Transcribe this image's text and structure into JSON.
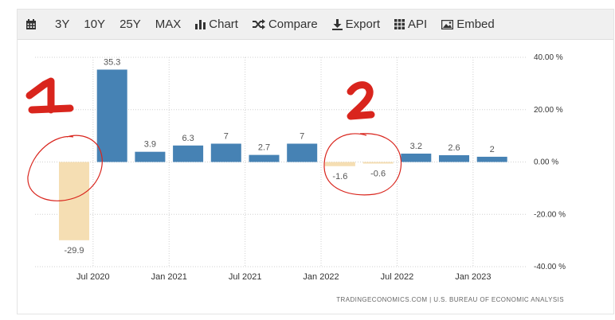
{
  "toolbar": {
    "calendar_icon": "calendar-icon",
    "items": [
      {
        "label": "3Y"
      },
      {
        "label": "10Y"
      },
      {
        "label": "25Y"
      },
      {
        "label": "MAX"
      },
      {
        "label": "Chart",
        "icon": "bar-chart-icon"
      },
      {
        "label": "Compare",
        "icon": "shuffle-icon"
      },
      {
        "label": "Export",
        "icon": "download-icon"
      },
      {
        "label": "API",
        "icon": "grid-icon"
      },
      {
        "label": "Embed",
        "icon": "image-icon"
      }
    ]
  },
  "colors": {
    "positive": "#4682b4",
    "negative": "#f5deb3",
    "annotation": "#d9251d"
  },
  "annotations": {
    "one": "1",
    "two": "2"
  },
  "source": "TRADINGECONOMICS.COM | U.S. BUREAU OF ECONOMIC ANALYSIS",
  "chart_data": {
    "type": "bar",
    "categories": [
      "2020-Q2",
      "2020-Q3",
      "2020-Q4",
      "2021-Q1",
      "2021-Q2",
      "2021-Q3",
      "2021-Q4",
      "2022-Q1",
      "2022-Q2",
      "2022-Q3",
      "2022-Q4",
      "2023-Q1"
    ],
    "values": [
      -29.9,
      35.3,
      3.9,
      6.3,
      7,
      2.7,
      7,
      -1.6,
      -0.6,
      3.2,
      2.6,
      2
    ],
    "data_labels": [
      "-29.9",
      "35.3",
      "3.9",
      "6.3",
      "7",
      "2.7",
      "7",
      "-1.6",
      "-0.6",
      "3.2",
      "2.6",
      "2"
    ],
    "x_ticks": [
      {
        "label": "Jul 2020",
        "after_index": 0
      },
      {
        "label": "Jan 2021",
        "after_index": 2
      },
      {
        "label": "Jul 2021",
        "after_index": 4
      },
      {
        "label": "Jan 2022",
        "after_index": 6
      },
      {
        "label": "Jul 2022",
        "after_index": 8
      },
      {
        "label": "Jan 2023",
        "after_index": 10
      }
    ],
    "y_ticks": [
      {
        "value": 40,
        "label": "40.00 %"
      },
      {
        "value": 20,
        "label": "20.00 %"
      },
      {
        "value": 0,
        "label": "0.00 %"
      },
      {
        "value": -20,
        "label": "-20.00 %"
      },
      {
        "value": -40,
        "label": "-40.00 %"
      }
    ],
    "ylim": [
      -40,
      40
    ],
    "grid": true,
    "title": "",
    "xlabel": "",
    "ylabel": ""
  }
}
